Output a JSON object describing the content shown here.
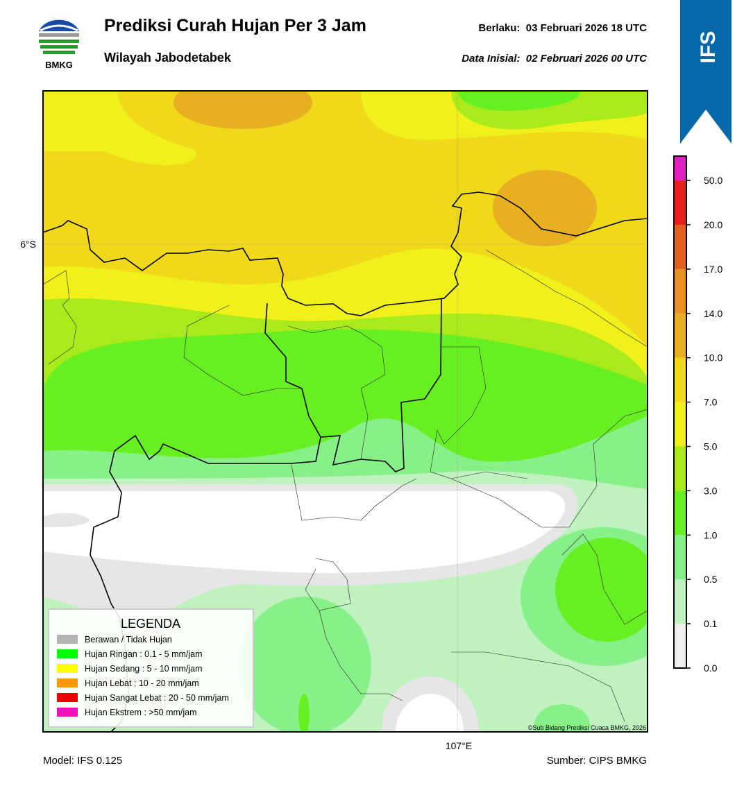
{
  "header": {
    "logo_text": "BMKG",
    "title": "Prediksi Curah Hujan Per 3 Jam",
    "subtitle": "Wilayah Jabodetabek",
    "valid": "Berlaku:  03 Februari 2026 18 UTC",
    "initial": "Data Inisial:  02 Februari 2026 00 UTC"
  },
  "badge": "IFS",
  "map": {
    "lat_label": "6°S",
    "lon_label": "107°E",
    "copyright": "©Sub Bidang Prediksi Cuaca BMKG, 2026"
  },
  "legend": {
    "title": "LEGENDA",
    "items": [
      {
        "label": "Berawan / Tidak Hujan",
        "color": "#b4b4b4"
      },
      {
        "label": "Hujan Ringan : 0.1 - 5 mm/jam",
        "color": "#00ff00"
      },
      {
        "label": "Hujan Sedang : 5 - 10 mm/jam",
        "color": "#ffff00"
      },
      {
        "label": "Hujan Lebat : 10 - 20 mm/jam",
        "color": "#ff9900"
      },
      {
        "label": "Hujan Sangat Lebat : 20 - 50 mm/jam",
        "color": "#ee0000"
      },
      {
        "label": "Hujan Ekstrem : >50 mm/jam",
        "color": "#ee11bb"
      }
    ]
  },
  "colorbar": {
    "ticks": [
      "0.0",
      "0.1",
      "0.5",
      "1.0",
      "3.0",
      "5.0",
      "7.0",
      "10.0",
      "14.0",
      "17.0",
      "20.0",
      "50.0"
    ],
    "colors": [
      "#efefef",
      "#c0f2c0",
      "#88f088",
      "#66f022",
      "#a8ea1a",
      "#f0f01a",
      "#f0d81a",
      "#e8b020",
      "#e89020",
      "#e06020",
      "#e82020",
      "#e020c0"
    ]
  },
  "footer": {
    "model": "Model: IFS 0.125",
    "source": "Sumber: CIPS BMKG"
  }
}
